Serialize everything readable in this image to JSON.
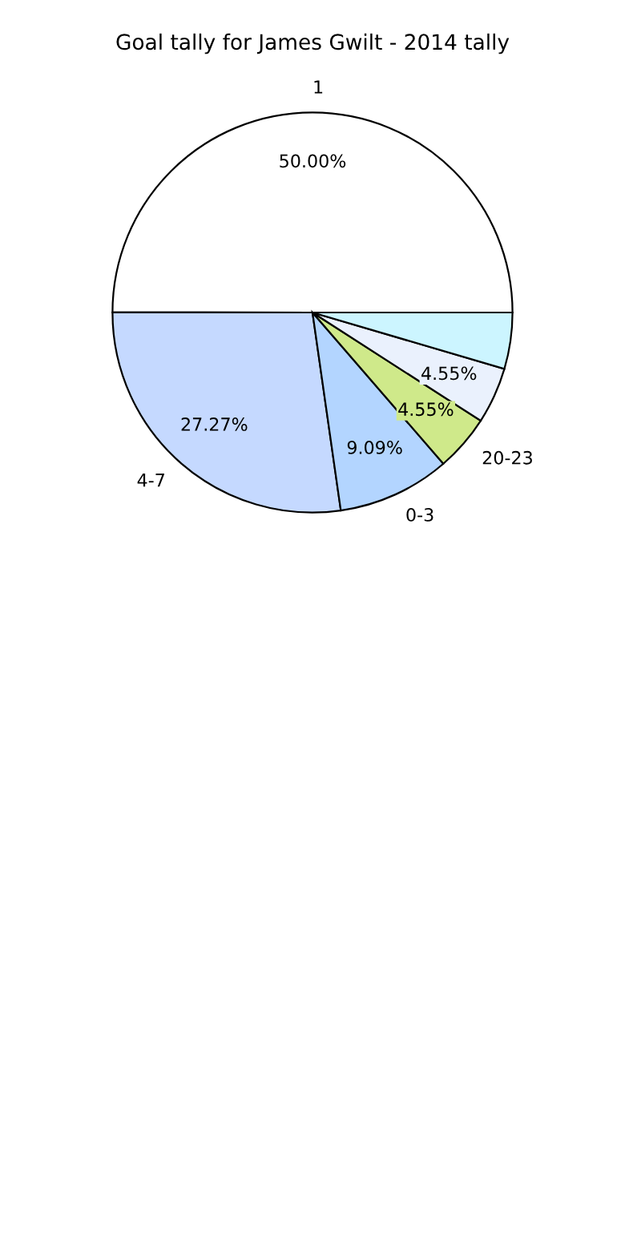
{
  "chart_data": {
    "type": "pie",
    "title": "Goal tally for James Gwilt - 2014 tally",
    "categories": [
      "1",
      "4-7",
      "0-3",
      "20-23",
      null,
      null
    ],
    "values": [
      50.0,
      27.27,
      9.09,
      4.55,
      4.55,
      4.55
    ],
    "value_labels": [
      "50.00%",
      "27.27%",
      "9.09%",
      "4.55%",
      "4.55%",
      null
    ],
    "colors": [
      "#ffffff",
      "#c5d9ff",
      "#b3d5ff",
      "#cfe98a",
      "#eaf1fd",
      "#ccf5ff"
    ]
  }
}
